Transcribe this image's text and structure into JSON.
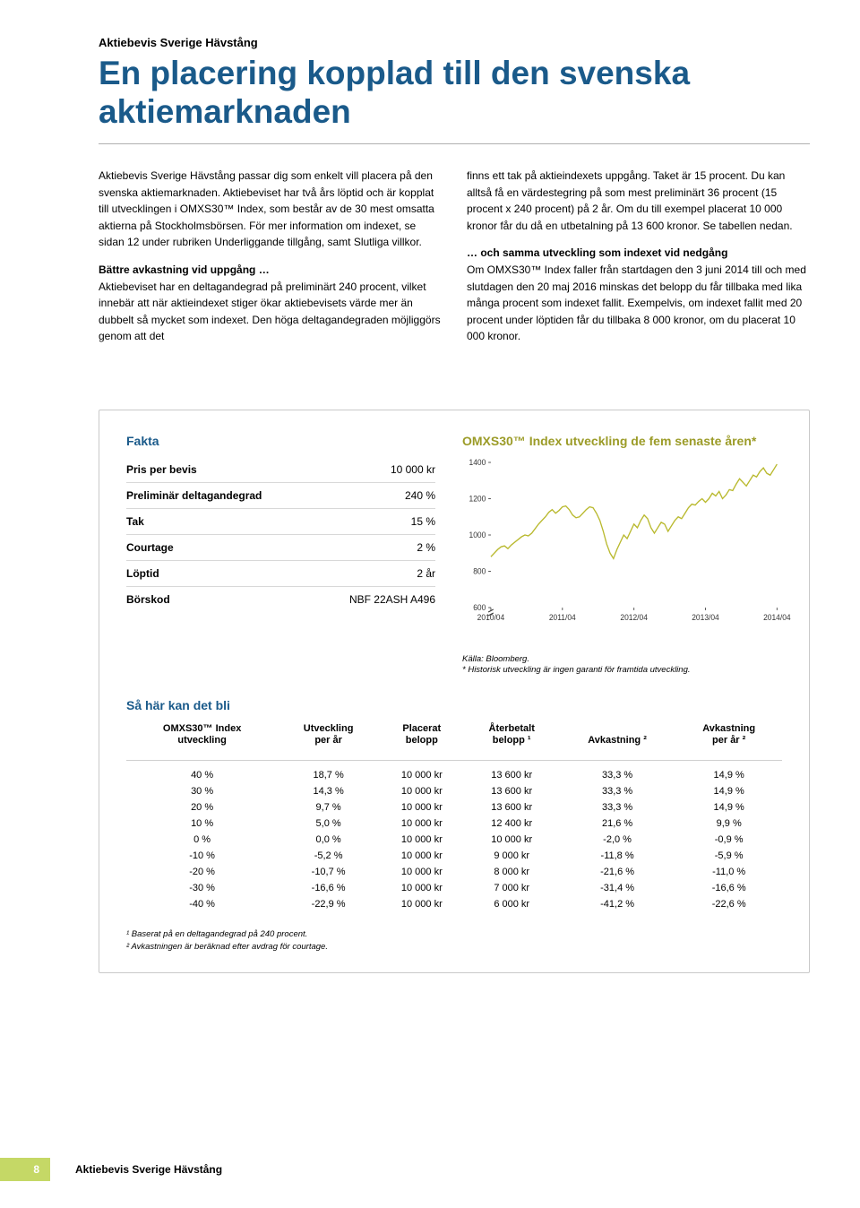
{
  "header": {
    "eyebrow": "Aktiebevis Sverige Hävstång",
    "headline": "En placering kopplad till den svenska aktiemarknaden"
  },
  "body": {
    "col1_p1": "Aktiebevis Sverige Hävstång passar dig som enkelt vill placera på den svenska aktiemarknaden. Aktiebeviset har två års löptid och är kopplat till utvecklingen i OMXS30™ Index, som består av de 30 mest omsatta aktierna på Stockholmsbörsen. För mer information om indexet, se sidan 12 under rubriken Underliggande tillgång, samt Slutliga villkor.",
    "col1_sub1": "Bättre avkastning vid uppgång …",
    "col1_p2": "Aktiebeviset har en deltagandegrad på preliminärt 240 procent, vilket innebär att när aktieindexet stiger ökar aktiebevisets värde mer än dubbelt så mycket som indexet. Den höga deltagandegraden möjliggörs genom att det ",
    "col2_p1": "finns ett tak på aktieindexets uppgång. Taket är 15 procent. Du kan alltså få en värdestegring på som mest preliminärt 36 procent (15 procent x 240 procent) på 2 år. Om du till exempel placerat 10 000 kronor får du då en utbetalning på 13 600 kronor. Se tabellen nedan.",
    "col2_sub1": "… och samma utveckling som indexet vid nedgång",
    "col2_p2": "Om OMXS30™ Index faller från startdagen den 3 juni 2014 till och med slutdagen den 20 maj 2016 minskas det belopp du får tillbaka med lika många procent som indexet fallit. Exempelvis, om indexet fallit med 20 procent under löptiden får du tillbaka 8 000 kronor, om du placerat 10 000 kronor."
  },
  "fakta": {
    "title": "Fakta",
    "rows": [
      {
        "label": "Pris per bevis",
        "value": "10 000 kr"
      },
      {
        "label": "Preliminär deltagandegrad",
        "value": "240 %"
      },
      {
        "label": "Tak",
        "value": "15 %"
      },
      {
        "label": "Courtage",
        "value": "2 %"
      },
      {
        "label": "Löptid",
        "value": "2 år"
      },
      {
        "label": "Börskod",
        "value": "NBF 22ASH A496"
      }
    ]
  },
  "chart": {
    "title": "OMXS30™ Index utveckling de fem senaste åren*",
    "type": "line",
    "line_color": "#b9b92e",
    "background_color": "#ffffff",
    "tick_color": "#555555",
    "ylim": [
      600,
      1400
    ],
    "yticks": [
      600,
      800,
      1000,
      1200,
      1400
    ],
    "xticks": [
      "2010/04",
      "2011/04",
      "2012/04",
      "2013/04",
      "2014/04"
    ],
    "data": [
      880,
      900,
      920,
      935,
      940,
      925,
      945,
      960,
      975,
      990,
      1000,
      995,
      1010,
      1035,
      1060,
      1080,
      1100,
      1125,
      1140,
      1120,
      1135,
      1155,
      1160,
      1140,
      1110,
      1095,
      1100,
      1120,
      1140,
      1155,
      1150,
      1120,
      1080,
      1020,
      950,
      900,
      870,
      920,
      960,
      1000,
      980,
      1020,
      1060,
      1040,
      1080,
      1110,
      1090,
      1040,
      1010,
      1040,
      1070,
      1060,
      1020,
      1050,
      1080,
      1100,
      1090,
      1120,
      1150,
      1170,
      1165,
      1185,
      1200,
      1180,
      1200,
      1230,
      1215,
      1240,
      1200,
      1220,
      1250,
      1245,
      1280,
      1310,
      1290,
      1270,
      1300,
      1330,
      1320,
      1350,
      1370,
      1340,
      1330,
      1360,
      1390
    ],
    "source1": "Källa: Bloomberg.",
    "source2": "* Historisk utveckling är ingen garanti för framtida utveckling."
  },
  "scenario": {
    "title": "Så här kan det bli",
    "headers": {
      "c1a": "OMXS30™ Index",
      "c1b": "utveckling",
      "c2a": "Utveckling",
      "c2b": "per år",
      "c3a": "Placerat",
      "c3b": "belopp",
      "c4a": "Återbetalt",
      "c4b": "belopp ¹",
      "c5a": "Avkastning ²",
      "c6a": "Avkastning",
      "c6b": "per år ²"
    },
    "rows": [
      {
        "c1": "40 %",
        "c2": "18,7 %",
        "c3": "10 000 kr",
        "c4": "13 600 kr",
        "c5": "33,3 %",
        "c6": "14,9 %"
      },
      {
        "c1": "30 %",
        "c2": "14,3 %",
        "c3": "10 000 kr",
        "c4": "13 600 kr",
        "c5": "33,3 %",
        "c6": "14,9 %"
      },
      {
        "c1": "20 %",
        "c2": "9,7 %",
        "c3": "10 000 kr",
        "c4": "13 600 kr",
        "c5": "33,3 %",
        "c6": "14,9 %"
      },
      {
        "c1": "10 %",
        "c2": "5,0 %",
        "c3": "10 000 kr",
        "c4": "12 400 kr",
        "c5": "21,6 %",
        "c6": "9,9 %"
      },
      {
        "c1": "0 %",
        "c2": "0,0 %",
        "c3": "10 000 kr",
        "c4": "10 000 kr",
        "c5": "-2,0 %",
        "c6": "-0,9 %"
      },
      {
        "c1": "-10 %",
        "c2": "-5,2 %",
        "c3": "10 000 kr",
        "c4": "9 000 kr",
        "c5": "-11,8 %",
        "c6": "-5,9 %"
      },
      {
        "c1": "-20 %",
        "c2": "-10,7 %",
        "c3": "10 000 kr",
        "c4": "8 000 kr",
        "c5": "-21,6 %",
        "c6": "-11,0 %"
      },
      {
        "c1": "-30 %",
        "c2": "-16,6 %",
        "c3": "10 000 kr",
        "c4": "7 000 kr",
        "c5": "-31,4 %",
        "c6": "-16,6 %"
      },
      {
        "c1": "-40 %",
        "c2": "-22,9 %",
        "c3": "10 000 kr",
        "c4": "6 000 kr",
        "c5": "-41,2 %",
        "c6": "-22,6 %"
      }
    ],
    "footnote1": "¹ Baserat på en deltagandegrad på 240 procent.",
    "footnote2": "² Avkastningen är beräknad efter avdrag för courtage."
  },
  "footer": {
    "page": "8",
    "label": "Aktiebevis Sverige Hävstång"
  }
}
